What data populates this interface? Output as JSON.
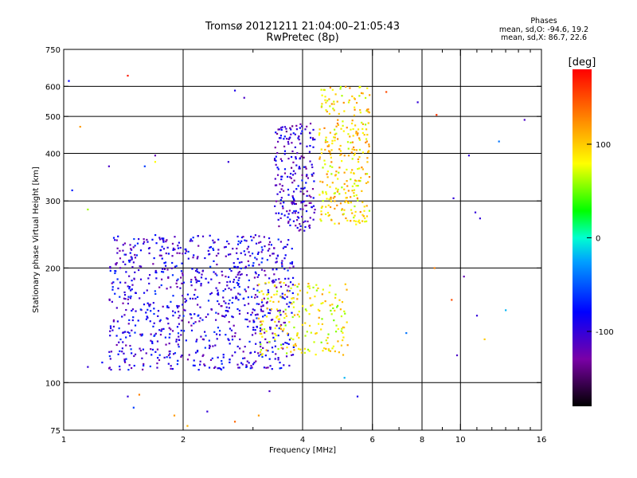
{
  "title": {
    "line1": "Tromsø 20121211 21:04:00–21:05:43",
    "line2": "RwPretec (8p)"
  },
  "stats": {
    "heading": "Phases",
    "line_o": "mean, sd,O: -94.6, 19.2",
    "line_x": "mean, sd,X:  86.7, 22.6"
  },
  "chart_data": {
    "type": "scatter",
    "xlabel": "Frequency [MHz]",
    "ylabel": "Stationary phase Virtual Height [km]",
    "xscale": "log",
    "yscale": "log",
    "xlim": [
      1,
      16
    ],
    "ylim": [
      75,
      750
    ],
    "x_ticks": [
      1,
      2,
      4,
      6,
      8,
      10,
      16
    ],
    "x_tick_labels": [
      "1",
      "2",
      "4",
      "6",
      "8",
      "10",
      "16"
    ],
    "x_grid": [
      2,
      4,
      6,
      8,
      10
    ],
    "y_ticks": [
      75,
      100,
      200,
      300,
      400,
      500,
      600,
      750
    ],
    "y_tick_labels": [
      "75",
      "100",
      "200",
      "300",
      "400",
      "500",
      "600",
      "750"
    ],
    "y_grid": [
      100,
      200,
      300,
      400,
      500,
      600
    ],
    "grid": true,
    "colorbar": {
      "label": "[deg]",
      "range": [
        -180,
        180
      ],
      "ticks": [
        100,
        0,
        -100
      ],
      "tick_labels": [
        "100",
        "0",
        "-100"
      ]
    },
    "clusters": [
      {
        "name": "E-region O trace",
        "x_range": [
          1.3,
          3.8
        ],
        "y_range": [
          108,
          245
        ],
        "phase_mean": -95,
        "approx_points": 900
      },
      {
        "name": "F-region O trace",
        "x_range": [
          3.4,
          4.3
        ],
        "y_range": [
          250,
          480
        ],
        "phase_mean": -105,
        "approx_points": 220
      },
      {
        "name": "F-region X trace",
        "x_range": [
          4.4,
          5.9
        ],
        "y_range": [
          260,
          600
        ],
        "phase_mean": 95,
        "approx_points": 300
      },
      {
        "name": "E-region X trace",
        "x_range": [
          3.1,
          5.2
        ],
        "y_range": [
          118,
          185
        ],
        "phase_mean": 85,
        "approx_points": 200
      }
    ],
    "scattered_points": [
      {
        "x": 1.45,
        "y": 640,
        "phase": 170
      },
      {
        "x": 1.03,
        "y": 620,
        "phase": -80
      },
      {
        "x": 2.7,
        "y": 585,
        "phase": -90
      },
      {
        "x": 2.85,
        "y": 560,
        "phase": -110
      },
      {
        "x": 6.5,
        "y": 580,
        "phase": 150
      },
      {
        "x": 7.8,
        "y": 545,
        "phase": -100
      },
      {
        "x": 8.7,
        "y": 505,
        "phase": 160
      },
      {
        "x": 1.1,
        "y": 470,
        "phase": 120
      },
      {
        "x": 14.5,
        "y": 490,
        "phase": -110
      },
      {
        "x": 12.5,
        "y": 430,
        "phase": -40
      },
      {
        "x": 10.5,
        "y": 395,
        "phase": -100
      },
      {
        "x": 1.3,
        "y": 370,
        "phase": -110
      },
      {
        "x": 1.6,
        "y": 370,
        "phase": -60
      },
      {
        "x": 2.6,
        "y": 380,
        "phase": -100
      },
      {
        "x": 1.05,
        "y": 320,
        "phase": -70
      },
      {
        "x": 1.15,
        "y": 285,
        "phase": 60
      },
      {
        "x": 9.6,
        "y": 305,
        "phase": -100
      },
      {
        "x": 10.9,
        "y": 280,
        "phase": -100
      },
      {
        "x": 11.2,
        "y": 270,
        "phase": -100
      },
      {
        "x": 8.6,
        "y": 200,
        "phase": 130
      },
      {
        "x": 10.2,
        "y": 190,
        "phase": -120
      },
      {
        "x": 9.5,
        "y": 165,
        "phase": 150
      },
      {
        "x": 11.0,
        "y": 150,
        "phase": -100
      },
      {
        "x": 13.0,
        "y": 155,
        "phase": -20
      },
      {
        "x": 9.8,
        "y": 118,
        "phase": -110
      },
      {
        "x": 11.5,
        "y": 130,
        "phase": 100
      },
      {
        "x": 7.3,
        "y": 135,
        "phase": -40
      },
      {
        "x": 5.1,
        "y": 103,
        "phase": -20
      },
      {
        "x": 5.5,
        "y": 92,
        "phase": -90
      },
      {
        "x": 1.45,
        "y": 92,
        "phase": -100
      },
      {
        "x": 1.5,
        "y": 86,
        "phase": -60
      },
      {
        "x": 1.55,
        "y": 93,
        "phase": 130
      },
      {
        "x": 1.9,
        "y": 82,
        "phase": 120
      },
      {
        "x": 2.05,
        "y": 77,
        "phase": 110
      },
      {
        "x": 2.3,
        "y": 84,
        "phase": -100
      },
      {
        "x": 2.7,
        "y": 79,
        "phase": 140
      },
      {
        "x": 3.1,
        "y": 82,
        "phase": 120
      },
      {
        "x": 3.3,
        "y": 95,
        "phase": -110
      },
      {
        "x": 1.15,
        "y": 110,
        "phase": -100
      },
      {
        "x": 1.25,
        "y": 113,
        "phase": -80
      },
      {
        "x": 1.7,
        "y": 380,
        "phase": 80
      },
      {
        "x": 1.7,
        "y": 395,
        "phase": -120
      }
    ]
  }
}
